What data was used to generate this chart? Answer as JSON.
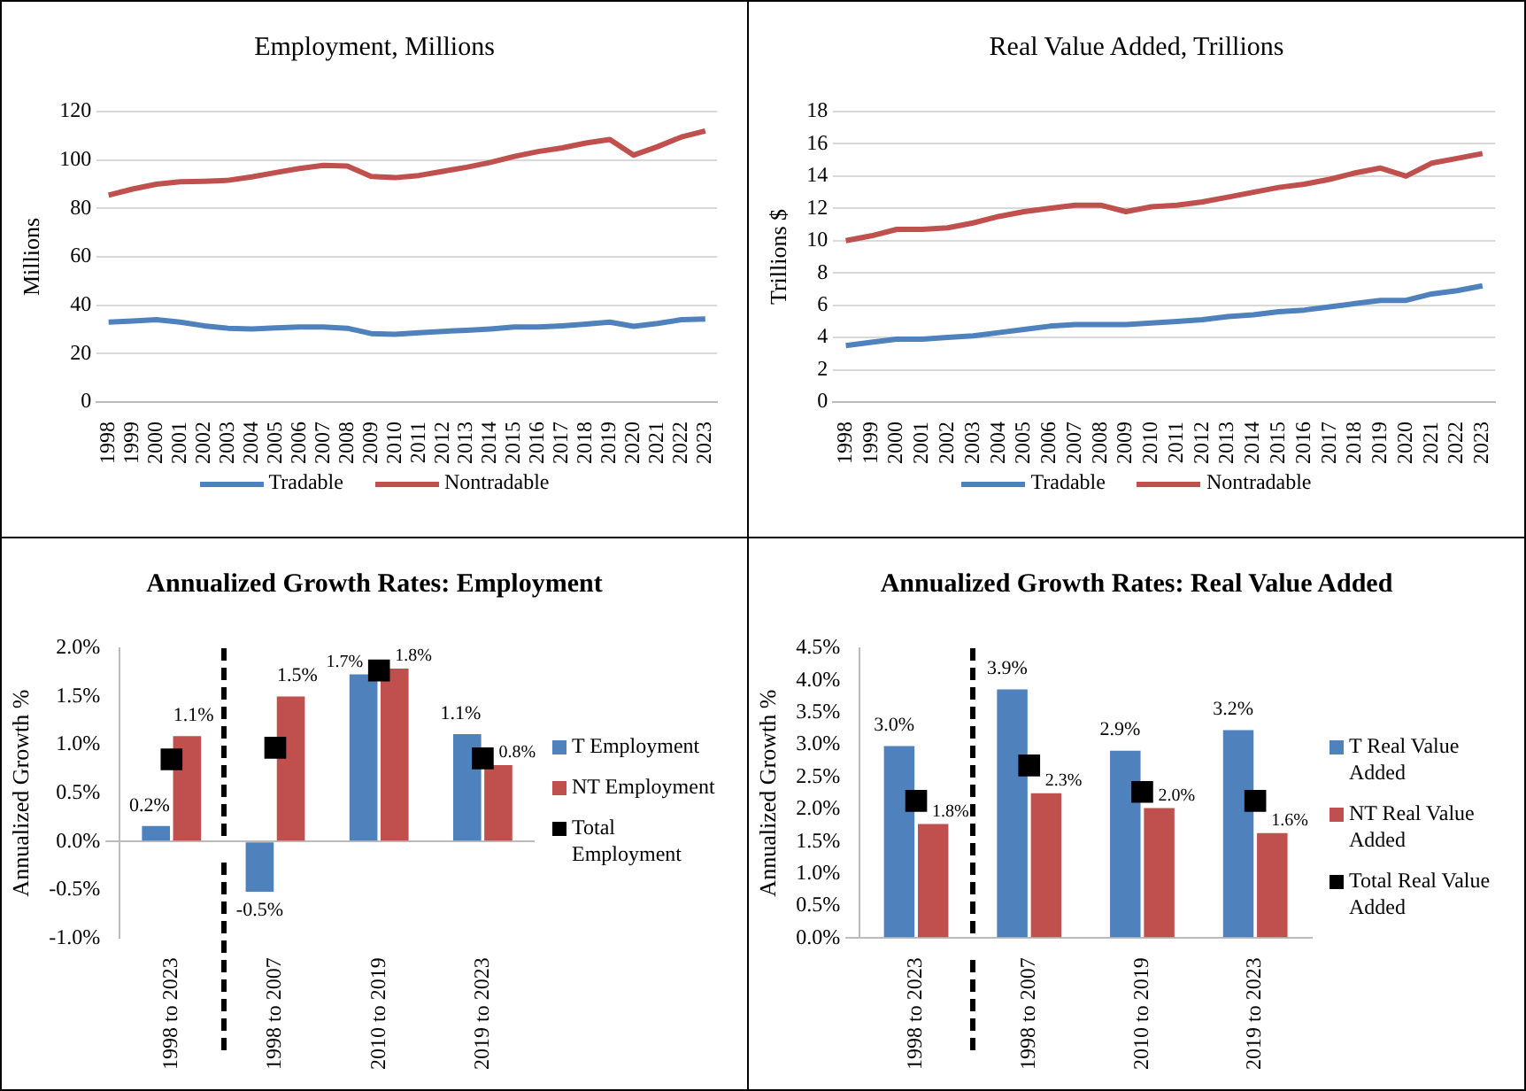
{
  "chart_data": [
    {
      "type": "line",
      "title": "Employment, Millions",
      "ylabel": "Millions",
      "categories": [
        "1998",
        "1999",
        "2000",
        "2001",
        "2002",
        "2003",
        "2004",
        "2005",
        "2006",
        "2007",
        "2008",
        "2009",
        "2010",
        "2011",
        "2012",
        "2013",
        "2014",
        "2015",
        "2016",
        "2017",
        "2018",
        "2019",
        "2020",
        "2021",
        "2022",
        "2023"
      ],
      "series": [
        {
          "name": "Tradable",
          "color": "#4f81bd",
          "values": [
            33,
            33.5,
            34,
            33,
            31.5,
            30.5,
            30.2,
            30.6,
            31,
            31,
            30.5,
            28.3,
            28,
            28.6,
            29.2,
            29.6,
            30.2,
            31,
            31,
            31.5,
            32.2,
            33,
            31.3,
            32.5,
            34,
            34.3
          ]
        },
        {
          "name": "Nontradable",
          "color": "#c0504d",
          "values": [
            85.5,
            88,
            90,
            91,
            91.2,
            91.6,
            93,
            94.8,
            96.5,
            97.8,
            97.5,
            93.2,
            92.7,
            93.6,
            95.3,
            97,
            99,
            101.5,
            103.5,
            105,
            107,
            108.5,
            102,
            105.5,
            109.5,
            112
          ]
        }
      ],
      "ylim": [
        0,
        120
      ],
      "yticks": [
        0,
        20,
        40,
        60,
        80,
        100,
        120
      ],
      "grid": "y",
      "legend": "bottom",
      "marker": "none"
    },
    {
      "type": "line",
      "title": "Real Value Added, Trillions",
      "ylabel": "Trillions $",
      "categories": [
        "1998",
        "1999",
        "2000",
        "2001",
        "2002",
        "2003",
        "2004",
        "2005",
        "2006",
        "2007",
        "2008",
        "2009",
        "2010",
        "2011",
        "2012",
        "2013",
        "2014",
        "2015",
        "2016",
        "2017",
        "2018",
        "2019",
        "2020",
        "2021",
        "2022",
        "2023"
      ],
      "series": [
        {
          "name": "Tradable",
          "color": "#4f81bd",
          "values": [
            3.5,
            3.7,
            3.9,
            3.9,
            4,
            4.1,
            4.3,
            4.5,
            4.7,
            4.8,
            4.8,
            4.8,
            4.9,
            5,
            5.1,
            5.3,
            5.4,
            5.6,
            5.7,
            5.9,
            6.1,
            6.3,
            6.3,
            6.7,
            6.9,
            7.2
          ]
        },
        {
          "name": "Nontradable",
          "color": "#c0504d",
          "values": [
            10,
            10.3,
            10.7,
            10.7,
            10.8,
            11.1,
            11.5,
            11.8,
            12,
            12.2,
            12.2,
            11.8,
            12.1,
            12.2,
            12.4,
            12.7,
            13,
            13.3,
            13.5,
            13.8,
            14.2,
            14.5,
            14,
            14.8,
            15.1,
            15.4
          ]
        }
      ],
      "ylim": [
        0,
        18
      ],
      "yticks": [
        0,
        2,
        4,
        6,
        8,
        10,
        12,
        14,
        16,
        18
      ],
      "grid": "y",
      "legend": "bottom",
      "marker": "none"
    },
    {
      "type": "bar",
      "title": "Annualized Growth Rates: Employment",
      "ylabel": "Annualized Growth %",
      "categories": [
        "1998 to 2023",
        "1998 to 2007",
        "2010 to 2019",
        "2019 to 2023"
      ],
      "series": [
        {
          "name": "T Employment",
          "color": "#4f81bd",
          "values": [
            0.16,
            -0.52,
            1.73,
            1.11
          ],
          "value_labels": [
            "0.2%",
            "-0.5%",
            "1.7%",
            "1.1%"
          ]
        },
        {
          "name": "NT Employment",
          "color": "#c0504d",
          "values": [
            1.09,
            1.5,
            1.79,
            0.79
          ],
          "value_labels": [
            "1.1%",
            "1.5%",
            "1.8%",
            "0.8%"
          ]
        },
        {
          "name": "Total Employment",
          "type": "scatter",
          "marker": "square",
          "color": "#000000",
          "x": [
            "1998 to 2023",
            "1998 to 2007",
            "2010 to 2019",
            "2019 to 2023"
          ],
          "values": [
            0.85,
            0.97,
            1.77,
            0.86
          ]
        }
      ],
      "ylim": [
        -1,
        2
      ],
      "yticks": [
        {
          "value": -1,
          "label": "-1.0%"
        },
        {
          "value": -0.5,
          "label": "-0.5%"
        },
        {
          "value": 0,
          "label": "0.0%"
        },
        {
          "value": 0.5,
          "label": "0.5%"
        },
        {
          "value": 1,
          "label": "1.0%"
        },
        {
          "value": 1.5,
          "label": "1.5%"
        },
        {
          "value": 2,
          "label": "2.0%"
        }
      ],
      "legend": "right"
    },
    {
      "type": "bar",
      "title": "Annualized Growth Rates: Real Value Added",
      "ylabel": "Annualized Growth %",
      "categories": [
        "1998 to 2023",
        "1998 to 2007",
        "2010 to 2019",
        "2019 to 2023"
      ],
      "series": [
        {
          "name": "T Real Value Added",
          "color": "#4f81bd",
          "values": [
            2.98,
            3.86,
            2.91,
            3.23
          ],
          "value_labels": [
            "3.0%",
            "3.9%",
            "2.9%",
            "3.2%"
          ]
        },
        {
          "name": "NT Real Value Added",
          "color": "#c0504d",
          "values": [
            1.77,
            2.25,
            2.02,
            1.63
          ],
          "value_labels": [
            "1.8%",
            "2.3%",
            "2.0%",
            "1.6%"
          ]
        },
        {
          "name": "Total Real Value Added",
          "type": "scatter",
          "marker": "square",
          "color": "#000000",
          "x": [
            "1998 to 2023",
            "1998 to 2007",
            "2010 to 2019",
            "2019 to 2023"
          ],
          "values": [
            2.13,
            2.68,
            2.27,
            2.13
          ]
        }
      ],
      "ylim": [
        0,
        4.5
      ],
      "yticks": [
        {
          "value": 0,
          "label": "0.0%"
        },
        {
          "value": 0.5,
          "label": "0.5%"
        },
        {
          "value": 1,
          "label": "1.0%"
        },
        {
          "value": 1.5,
          "label": "1.5%"
        },
        {
          "value": 2,
          "label": "2.0%"
        },
        {
          "value": 2.5,
          "label": "2.5%"
        },
        {
          "value": 3,
          "label": "3.0%"
        },
        {
          "value": 3.5,
          "label": "3.5%"
        },
        {
          "value": 4,
          "label": "4.0%"
        },
        {
          "value": 4.5,
          "label": "4.5%"
        }
      ],
      "legend": "right"
    }
  ]
}
